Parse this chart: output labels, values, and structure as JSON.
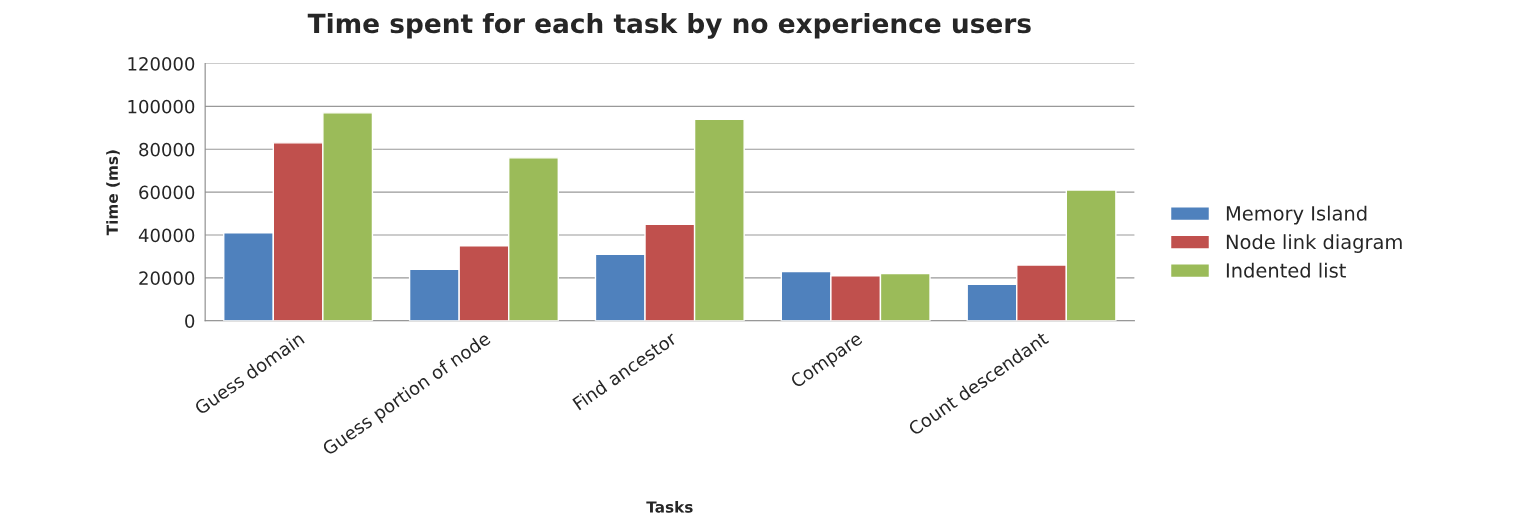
{
  "chart_data": {
    "type": "bar",
    "title": "Time spent for each task by no experience users",
    "xlabel": "Tasks",
    "ylabel": "Time (ms)",
    "categories": [
      "Guess domain",
      "Guess portion of node",
      "Find ancestor",
      "Compare",
      "Count descendant"
    ],
    "series": [
      {
        "name": "Memory Island",
        "color": "#4f81bd",
        "values": [
          41000,
          24000,
          31000,
          23000,
          17000
        ]
      },
      {
        "name": "Node link diagram",
        "color": "#c0504d",
        "values": [
          83000,
          35000,
          45000,
          21000,
          26000
        ]
      },
      {
        "name": "Indented list",
        "color": "#9bbb59",
        "values": [
          97000,
          76000,
          94000,
          22000,
          61000
        ]
      }
    ],
    "ylim": [
      0,
      120000
    ],
    "yticks": [
      0,
      20000,
      40000,
      60000,
      80000,
      100000,
      120000
    ],
    "grid": "y",
    "legend": "right"
  }
}
